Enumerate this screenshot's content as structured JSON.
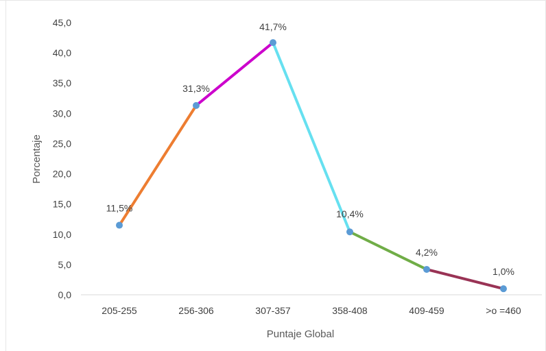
{
  "chart_data": {
    "type": "line",
    "title": "",
    "xlabel": "Puntaje Global",
    "ylabel": "Porcentaje",
    "ylim": [
      0,
      45
    ],
    "ytick_step": 5,
    "ytick_labels": [
      "0,0",
      "5,0",
      "10,0",
      "15,0",
      "20,0",
      "25,0",
      "30,0",
      "35,0",
      "40,0",
      "45,0"
    ],
    "categories": [
      "205-255",
      "256-306",
      "307-357",
      "358-408",
      "409-459",
      ">o =460"
    ],
    "values": [
      11.5,
      31.3,
      41.7,
      10.4,
      4.2,
      1.0
    ],
    "data_labels": [
      "11,5%",
      "31,3%",
      "41,7%",
      "10,4%",
      "4,2%",
      "1,0%"
    ],
    "segment_colors": [
      "#ED7D31",
      "#CC00CC",
      "#66E0F0",
      "#70AD47",
      "#993355"
    ],
    "marker_color": "#5B9BD5",
    "grid": false,
    "legend": "none"
  }
}
